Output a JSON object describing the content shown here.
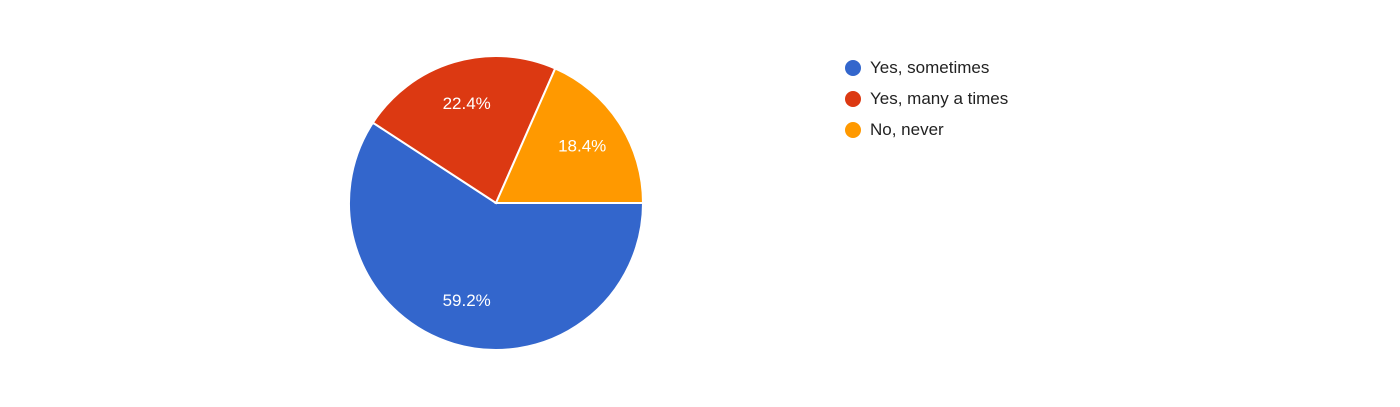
{
  "chart_data": {
    "type": "pie",
    "slices": [
      {
        "label": "Yes, sometimes",
        "value": 59.2,
        "display": "59.2%",
        "color": "#3366cc"
      },
      {
        "label": "Yes, many a times",
        "value": 22.4,
        "display": "22.4%",
        "color": "#dc3912"
      },
      {
        "label": "No, never",
        "value": 18.4,
        "display": "18.4%",
        "color": "#ff9900"
      }
    ],
    "legend_position": "right"
  }
}
